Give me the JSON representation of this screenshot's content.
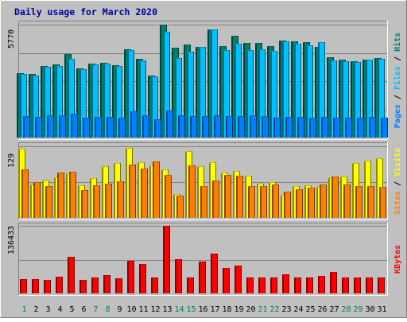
{
  "chart_data": [
    {
      "type": "bar",
      "title": "Daily usage for March 2020",
      "ymax_label": "5770",
      "ymax": 5770,
      "right_label": [
        "Pages",
        "Files",
        "Hits"
      ],
      "colors": {
        "Hits": "#00806b",
        "Files": "#00c0ff",
        "Pages": "#0080ff"
      },
      "categories": [
        "1",
        "2",
        "3",
        "4",
        "5",
        "6",
        "7",
        "8",
        "9",
        "10",
        "11",
        "12",
        "13",
        "14",
        "15",
        "16",
        "17",
        "18",
        "19",
        "20",
        "21",
        "22",
        "23",
        "24",
        "25",
        "26",
        "27",
        "28",
        "29",
        "30",
        "31"
      ],
      "series": [
        {
          "name": "Hits",
          "values": [
            3300,
            3250,
            3640,
            3720,
            4260,
            3540,
            3780,
            3800,
            3690,
            4520,
            4020,
            3150,
            5770,
            4580,
            4770,
            4630,
            5530,
            4670,
            5220,
            4830,
            4820,
            4670,
            4950,
            4900,
            4870,
            4640,
            4110,
            3970,
            3900,
            4000,
            4050
          ]
        },
        {
          "name": "Files",
          "values": [
            3250,
            3150,
            3620,
            3650,
            4030,
            3500,
            3720,
            3780,
            3640,
            4480,
            3930,
            3110,
            5410,
            4080,
            4370,
            4650,
            5530,
            4460,
            4790,
            4450,
            4500,
            4440,
            4920,
            4800,
            4710,
            4880,
            3960,
            3890,
            3880,
            3990,
            4040
          ]
        },
        {
          "name": "Pages",
          "values": [
            1100,
            1050,
            1150,
            1150,
            1200,
            1000,
            1050,
            1050,
            1000,
            1350,
            1150,
            950,
            1400,
            1150,
            1100,
            1100,
            1150,
            1100,
            1100,
            1150,
            1100,
            1000,
            1050,
            1050,
            1000,
            1050,
            1000,
            1000,
            1000,
            1050,
            1000
          ]
        }
      ]
    },
    {
      "type": "bar",
      "ymax_label": "129",
      "ymax": 129,
      "right_label": [
        "Sites",
        "Visits"
      ],
      "colors": {
        "Visits": "#ffff00",
        "Sites": "#ff8000"
      },
      "categories": [
        "1",
        "2",
        "3",
        "4",
        "5",
        "6",
        "7",
        "8",
        "9",
        "10",
        "11",
        "12",
        "13",
        "14",
        "15",
        "16",
        "17",
        "18",
        "19",
        "20",
        "21",
        "22",
        "23",
        "24",
        "25",
        "26",
        "27",
        "28",
        "29",
        "30",
        "31"
      ],
      "series": [
        {
          "name": "Visits",
          "values": [
            124,
            60,
            68,
            73,
            80,
            59,
            71,
            93,
            99,
            126,
            100,
            95,
            87,
            43,
            120,
            93,
            100,
            82,
            84,
            76,
            62,
            64,
            42,
            57,
            59,
            56,
            73,
            74,
            99,
            103,
            107
          ]
        },
        {
          "name": "Sites",
          "values": [
            87,
            64,
            58,
            81,
            83,
            50,
            59,
            62,
            66,
            96,
            89,
            102,
            78,
            40,
            95,
            57,
            68,
            78,
            76,
            58,
            58,
            60,
            48,
            52,
            55,
            60,
            75,
            60,
            58,
            57,
            56
          ]
        }
      ]
    },
    {
      "type": "bar",
      "ymax_label": "136433",
      "ymax": 136433,
      "right_label": [
        "KBytes"
      ],
      "colors": {
        "KBytes": "#ff0000"
      },
      "categories": [
        "1",
        "2",
        "3",
        "4",
        "5",
        "6",
        "7",
        "8",
        "9",
        "10",
        "11",
        "12",
        "13",
        "14",
        "15",
        "16",
        "17",
        "18",
        "19",
        "20",
        "21",
        "22",
        "23",
        "24",
        "25",
        "26",
        "27",
        "28",
        "29",
        "30",
        "31"
      ],
      "series": [
        {
          "name": "KBytes",
          "values": [
            28500,
            28500,
            28000,
            34500,
            74000,
            27500,
            32000,
            37500,
            30000,
            66000,
            59000,
            31500,
            136433,
            69000,
            31500,
            64000,
            81000,
            52000,
            56000,
            32000,
            32000,
            32500,
            38500,
            32500,
            32500,
            35500,
            43500,
            32000,
            32500,
            32500,
            32000
          ]
        }
      ]
    }
  ],
  "weekend_days": [
    1,
    7,
    8,
    14,
    15,
    21,
    22,
    28,
    29
  ]
}
